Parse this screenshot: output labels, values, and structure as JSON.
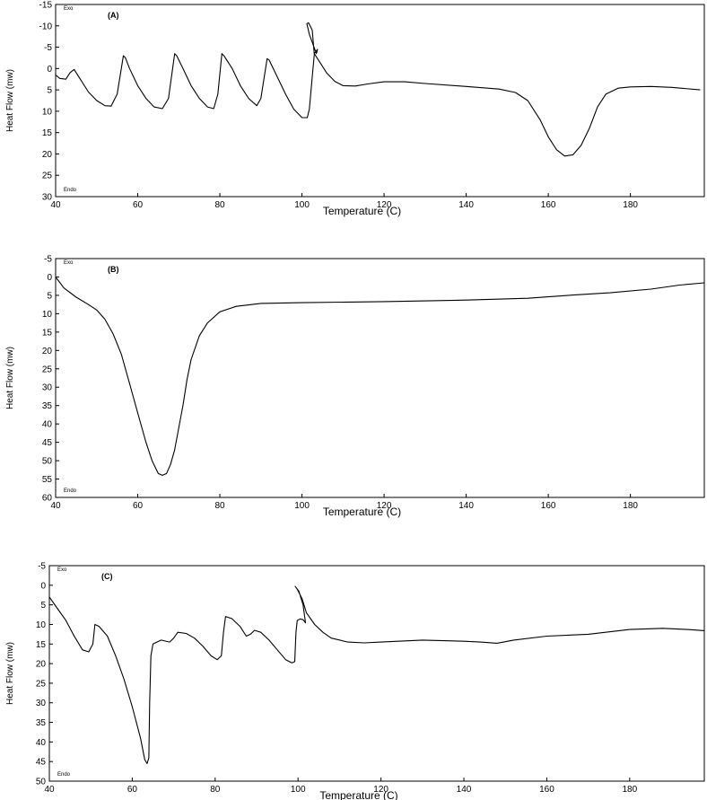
{
  "chart_data": [
    {
      "type": "line",
      "panel_label": "(A)",
      "exo_label": "Exo",
      "endo_label": "Endo",
      "xlabel": "Temperature (C)",
      "ylabel": "Heat Flow (mw)",
      "xlim": [
        40,
        198
      ],
      "ylim": [
        -15,
        30
      ],
      "y_inverted": true,
      "xticks": [
        40,
        60,
        80,
        100,
        120,
        140,
        160,
        180
      ],
      "yticks": [
        -15,
        -10,
        -5,
        0,
        5,
        10,
        15,
        20,
        25,
        30
      ],
      "series": [
        {
          "points": [
            [
              40,
              1.5
            ],
            [
              41,
              2.3
            ],
            [
              42.5,
              2.5
            ],
            [
              43.5,
              1
            ],
            [
              44.5,
              0.2
            ],
            [
              46,
              2.5
            ],
            [
              48,
              5.5
            ],
            [
              50,
              7.5
            ],
            [
              52,
              8.7
            ],
            [
              53.5,
              8.8
            ],
            [
              55,
              6
            ],
            [
              56.5,
              -3
            ],
            [
              57,
              -2.5
            ],
            [
              58,
              0
            ],
            [
              60,
              4
            ],
            [
              62,
              7
            ],
            [
              64,
              9
            ],
            [
              66,
              9.4
            ],
            [
              67.5,
              7
            ],
            [
              69,
              -3.5
            ],
            [
              69.5,
              -3
            ],
            [
              71,
              0
            ],
            [
              73,
              4
            ],
            [
              75,
              7
            ],
            [
              77,
              9
            ],
            [
              78.5,
              9.4
            ],
            [
              79.5,
              6
            ],
            [
              80.5,
              -3.5
            ],
            [
              81,
              -3
            ],
            [
              83,
              0
            ],
            [
              85,
              4
            ],
            [
              87,
              7
            ],
            [
              89,
              8.7
            ],
            [
              90,
              7
            ],
            [
              91.5,
              -2.3
            ],
            [
              92,
              -2
            ],
            [
              94,
              2
            ],
            [
              96,
              6
            ],
            [
              98,
              9.5
            ],
            [
              100,
              11.5
            ],
            [
              101.3,
              11.5
            ],
            [
              101.8,
              9.5
            ],
            [
              102.5,
              2
            ],
            [
              103,
              -3.3
            ],
            [
              102.5,
              -9
            ],
            [
              101.6,
              -10.7
            ],
            [
              101.2,
              -10.5
            ],
            [
              101.8,
              -8
            ],
            [
              103.5,
              -3.5
            ],
            [
              103.8,
              -4.5
            ],
            [
              103,
              -3.5
            ],
            [
              104,
              -2
            ],
            [
              106,
              1
            ],
            [
              108,
              3
            ],
            [
              110,
              4
            ],
            [
              113,
              4.1
            ],
            [
              116,
              3.6
            ],
            [
              120,
              3.1
            ],
            [
              125,
              3.1
            ],
            [
              130,
              3.5
            ],
            [
              140,
              4.2
            ],
            [
              148,
              4.8
            ],
            [
              152,
              5.6
            ],
            [
              155,
              7.5
            ],
            [
              158,
              12
            ],
            [
              160,
              16
            ],
            [
              162,
              19
            ],
            [
              164,
              20.5
            ],
            [
              166,
              20.2
            ],
            [
              168,
              18
            ],
            [
              170,
              14
            ],
            [
              172,
              9
            ],
            [
              174,
              6
            ],
            [
              177,
              4.6
            ],
            [
              180,
              4.3
            ],
            [
              185,
              4.2
            ],
            [
              190,
              4.4
            ],
            [
              197,
              5
            ]
          ]
        }
      ]
    },
    {
      "type": "line",
      "panel_label": "(B)",
      "exo_label": "Exo",
      "endo_label": "Endo",
      "xlabel": "Temperature (C)",
      "ylabel": "Heat Flow (mw)",
      "xlim": [
        40,
        198
      ],
      "ylim": [
        -5,
        60
      ],
      "y_inverted": true,
      "xticks": [
        40,
        60,
        80,
        100,
        120,
        140,
        160,
        180
      ],
      "yticks": [
        -5,
        0,
        5,
        10,
        15,
        20,
        25,
        30,
        35,
        40,
        45,
        50,
        55,
        60
      ],
      "series": [
        {
          "points": [
            [
              40,
              0
            ],
            [
              42,
              3
            ],
            [
              45,
              5.5
            ],
            [
              48,
              7.5
            ],
            [
              50,
              9
            ],
            [
              52,
              11.5
            ],
            [
              54,
              15.5
            ],
            [
              56,
              21
            ],
            [
              58,
              29
            ],
            [
              60,
              37
            ],
            [
              62,
              45
            ],
            [
              63.5,
              50
            ],
            [
              65,
              53.5
            ],
            [
              66,
              54
            ],
            [
              67,
              53.5
            ],
            [
              68,
              51
            ],
            [
              69,
              47
            ],
            [
              70,
              41
            ],
            [
              71,
              35
            ],
            [
              72,
              28
            ],
            [
              73,
              22.5
            ],
            [
              75,
              16
            ],
            [
              77,
              12.5
            ],
            [
              80,
              9.5
            ],
            [
              84,
              8
            ],
            [
              90,
              7.2
            ],
            [
              100,
              7
            ],
            [
              120,
              6.7
            ],
            [
              140,
              6.3
            ],
            [
              155,
              5.8
            ],
            [
              165,
              5
            ],
            [
              175,
              4.3
            ],
            [
              185,
              3.3
            ],
            [
              192,
              2.2
            ],
            [
              198,
              1.6
            ]
          ]
        }
      ]
    },
    {
      "type": "line",
      "panel_label": "(C)",
      "exo_label": "Exo",
      "endo_label": "Endo",
      "xlabel": "Temperature (C)",
      "ylabel": "Heat Flow (mw)",
      "xlim": [
        40,
        198
      ],
      "ylim": [
        -5,
        50
      ],
      "y_inverted": true,
      "xticks": [
        40,
        60,
        80,
        100,
        120,
        140,
        160,
        180
      ],
      "yticks": [
        -5,
        0,
        5,
        10,
        15,
        20,
        25,
        30,
        35,
        40,
        45,
        50
      ],
      "series": [
        {
          "points": [
            [
              40,
              3
            ],
            [
              42,
              6
            ],
            [
              44,
              9
            ],
            [
              46,
              13
            ],
            [
              48,
              16.5
            ],
            [
              49.5,
              17
            ],
            [
              50.5,
              15
            ],
            [
              51,
              10
            ],
            [
              52,
              10.5
            ],
            [
              54,
              13
            ],
            [
              56,
              18
            ],
            [
              58,
              24
            ],
            [
              60,
              31
            ],
            [
              62,
              39
            ],
            [
              63,
              44.5
            ],
            [
              63.6,
              45.5
            ],
            [
              64,
              44
            ],
            [
              64.2,
              30
            ],
            [
              64.5,
              18
            ],
            [
              65,
              15
            ],
            [
              67,
              14
            ],
            [
              69,
              14.5
            ],
            [
              70,
              13.5
            ],
            [
              71,
              12
            ],
            [
              73,
              12.3
            ],
            [
              75,
              13.5
            ],
            [
              77,
              15.5
            ],
            [
              79,
              18
            ],
            [
              80.5,
              19
            ],
            [
              81.5,
              18
            ],
            [
              82,
              12
            ],
            [
              82.5,
              8
            ],
            [
              84,
              8.5
            ],
            [
              86,
              10.5
            ],
            [
              87.5,
              13
            ],
            [
              88.5,
              12.5
            ],
            [
              89.5,
              11.5
            ],
            [
              91,
              12
            ],
            [
              93,
              14
            ],
            [
              95,
              16.5
            ],
            [
              97,
              19
            ],
            [
              98.5,
              19.8
            ],
            [
              99.2,
              19.5
            ],
            [
              99.5,
              12
            ],
            [
              99.8,
              9
            ],
            [
              100.5,
              8.6
            ],
            [
              101.2,
              8.8
            ],
            [
              101.8,
              9.6
            ],
            [
              101.2,
              5
            ],
            [
              100.2,
              1.5
            ],
            [
              99.3,
              0.3
            ],
            [
              99.8,
              1
            ],
            [
              101,
              3.5
            ],
            [
              102,
              7
            ],
            [
              104,
              10
            ],
            [
              106,
              12
            ],
            [
              108,
              13.5
            ],
            [
              112,
              14.5
            ],
            [
              116,
              14.7
            ],
            [
              120,
              14.5
            ],
            [
              130,
              14
            ],
            [
              140,
              14.3
            ],
            [
              144,
              14.5
            ],
            [
              148,
              14.8
            ],
            [
              152,
              14
            ],
            [
              160,
              13
            ],
            [
              170,
              12.5
            ],
            [
              180,
              11.3
            ],
            [
              188,
              11
            ],
            [
              194,
              11.3
            ],
            [
              198,
              11.6
            ]
          ]
        }
      ]
    }
  ]
}
